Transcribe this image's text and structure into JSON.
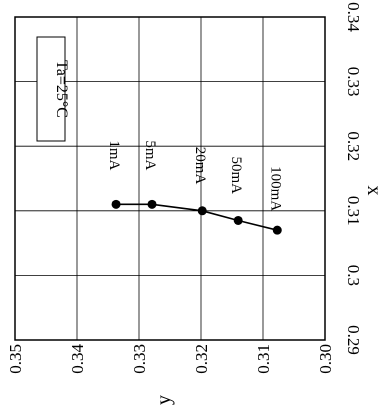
{
  "chart_data": {
    "type": "line",
    "title": "",
    "xlabel": "x",
    "ylabel": "y",
    "xlim": [
      0.29,
      0.34
    ],
    "ylim": [
      0.3,
      0.35
    ],
    "x_ticks": [
      "0.29",
      "0.3",
      "0.31",
      "0.32",
      "0.33",
      "0.34"
    ],
    "y_ticks": [
      "0.35",
      "0.34",
      "0.33",
      "0.32",
      "0.31",
      "0.30"
    ],
    "grid": true,
    "orientation_note": "figure printed rotated 90 degrees counter-clockwise",
    "annotation": "Ta=25°C",
    "series": [
      {
        "points": [
          {
            "x": 0.311,
            "y": 0.3337,
            "label": "1mA"
          },
          {
            "x": 0.311,
            "y": 0.3279,
            "label": "5mA"
          },
          {
            "x": 0.31,
            "y": 0.3198,
            "label": "20mA"
          },
          {
            "x": 0.3085,
            "y": 0.314,
            "label": "50mA"
          },
          {
            "x": 0.307,
            "y": 0.3077,
            "label": "100mA"
          }
        ]
      }
    ]
  }
}
